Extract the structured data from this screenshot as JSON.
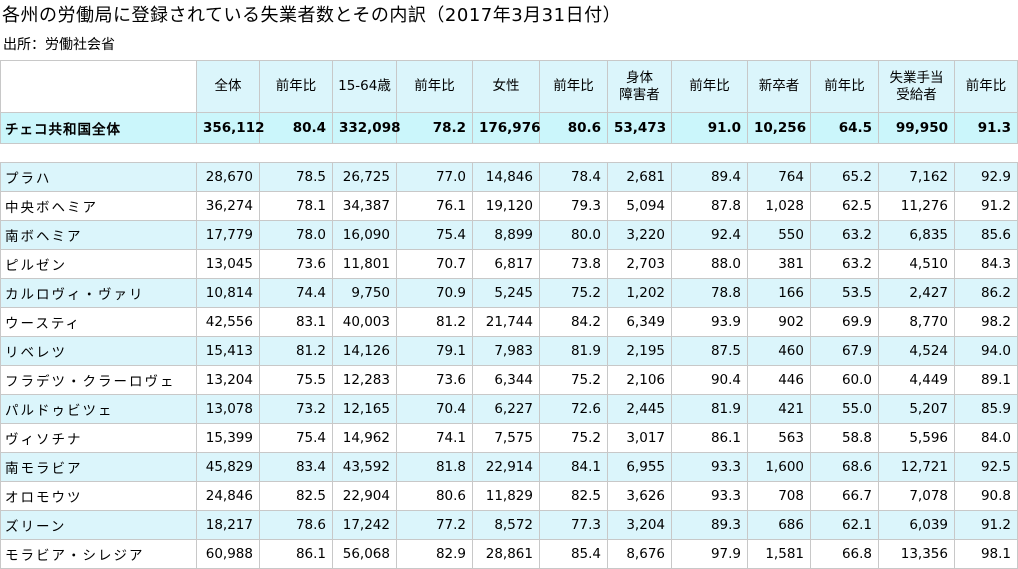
{
  "title": "各州の労働局に登録されている失業者数とその内訳（2017年3月31日付）",
  "source": "出所：労働社会省",
  "headers": [
    "全体",
    "前年比",
    "15-64歳",
    "前年比",
    "女性",
    "前年比",
    "身体\n障害者",
    "前年比",
    "新卒者",
    "前年比",
    "失業手当\n受給者",
    "前年比"
  ],
  "total": {
    "name": "チェコ共和国全体",
    "values": [
      "356,112",
      "80.4",
      "332,098",
      "78.2",
      "176,976",
      "80.6",
      "53,473",
      "91.0",
      "10,256",
      "64.5",
      "99,950",
      "91.3"
    ]
  },
  "rows": [
    {
      "name": "プラハ",
      "values": [
        "28,670",
        "78.5",
        "26,725",
        "77.0",
        "14,846",
        "78.4",
        "2,681",
        "89.4",
        "764",
        "65.2",
        "7,162",
        "92.9"
      ]
    },
    {
      "name": "中央ボヘミア",
      "values": [
        "36,274",
        "78.1",
        "34,387",
        "76.1",
        "19,120",
        "79.3",
        "5,094",
        "87.8",
        "1,028",
        "62.5",
        "11,276",
        "91.2"
      ]
    },
    {
      "name": "南ボヘミア",
      "values": [
        "17,779",
        "78.0",
        "16,090",
        "75.4",
        "8,899",
        "80.0",
        "3,220",
        "92.4",
        "550",
        "63.2",
        "6,835",
        "85.6"
      ]
    },
    {
      "name": "ピルゼン",
      "values": [
        "13,045",
        "73.6",
        "11,801",
        "70.7",
        "6,817",
        "73.8",
        "2,703",
        "88.0",
        "381",
        "63.2",
        "4,510",
        "84.3"
      ]
    },
    {
      "name": "カルロヴィ・ヴァリ",
      "values": [
        "10,814",
        "74.4",
        "9,750",
        "70.9",
        "5,245",
        "75.2",
        "1,202",
        "78.8",
        "166",
        "53.5",
        "2,427",
        "86.2"
      ]
    },
    {
      "name": "ウースティ",
      "values": [
        "42,556",
        "83.1",
        "40,003",
        "81.2",
        "21,744",
        "84.2",
        "6,349",
        "93.9",
        "902",
        "69.9",
        "8,770",
        "98.2"
      ]
    },
    {
      "name": "リベレツ",
      "values": [
        "15,413",
        "81.2",
        "14,126",
        "79.1",
        "7,983",
        "81.9",
        "2,195",
        "87.5",
        "460",
        "67.9",
        "4,524",
        "94.0"
      ]
    },
    {
      "name": "フラデツ・クラーロヴェ",
      "values": [
        "13,204",
        "75.5",
        "12,283",
        "73.6",
        "6,344",
        "75.2",
        "2,106",
        "90.4",
        "446",
        "60.0",
        "4,449",
        "89.1"
      ]
    },
    {
      "name": "パルドゥビツェ",
      "values": [
        "13,078",
        "73.2",
        "12,165",
        "70.4",
        "6,227",
        "72.6",
        "2,445",
        "81.9",
        "421",
        "55.0",
        "5,207",
        "85.9"
      ]
    },
    {
      "name": "ヴィソチナ",
      "values": [
        "15,399",
        "75.4",
        "14,962",
        "74.1",
        "7,575",
        "75.2",
        "3,017",
        "86.1",
        "563",
        "58.8",
        "5,596",
        "84.0"
      ]
    },
    {
      "name": "南モラビア",
      "values": [
        "45,829",
        "83.4",
        "43,592",
        "81.8",
        "22,914",
        "84.1",
        "6,955",
        "93.3",
        "1,600",
        "68.6",
        "12,721",
        "92.5"
      ]
    },
    {
      "name": "オロモウツ",
      "values": [
        "24,846",
        "82.5",
        "22,904",
        "80.6",
        "11,829",
        "82.5",
        "3,626",
        "93.3",
        "708",
        "66.7",
        "7,078",
        "90.8"
      ]
    },
    {
      "name": "ズリーン",
      "values": [
        "18,217",
        "78.6",
        "17,242",
        "77.2",
        "8,572",
        "77.3",
        "3,204",
        "89.3",
        "686",
        "62.1",
        "6,039",
        "91.2"
      ]
    },
    {
      "name": "モラビア・シレジア",
      "values": [
        "60,988",
        "86.1",
        "56,068",
        "82.9",
        "28,861",
        "85.4",
        "8,676",
        "97.9",
        "1,581",
        "66.8",
        "13,356",
        "98.1"
      ]
    }
  ]
}
